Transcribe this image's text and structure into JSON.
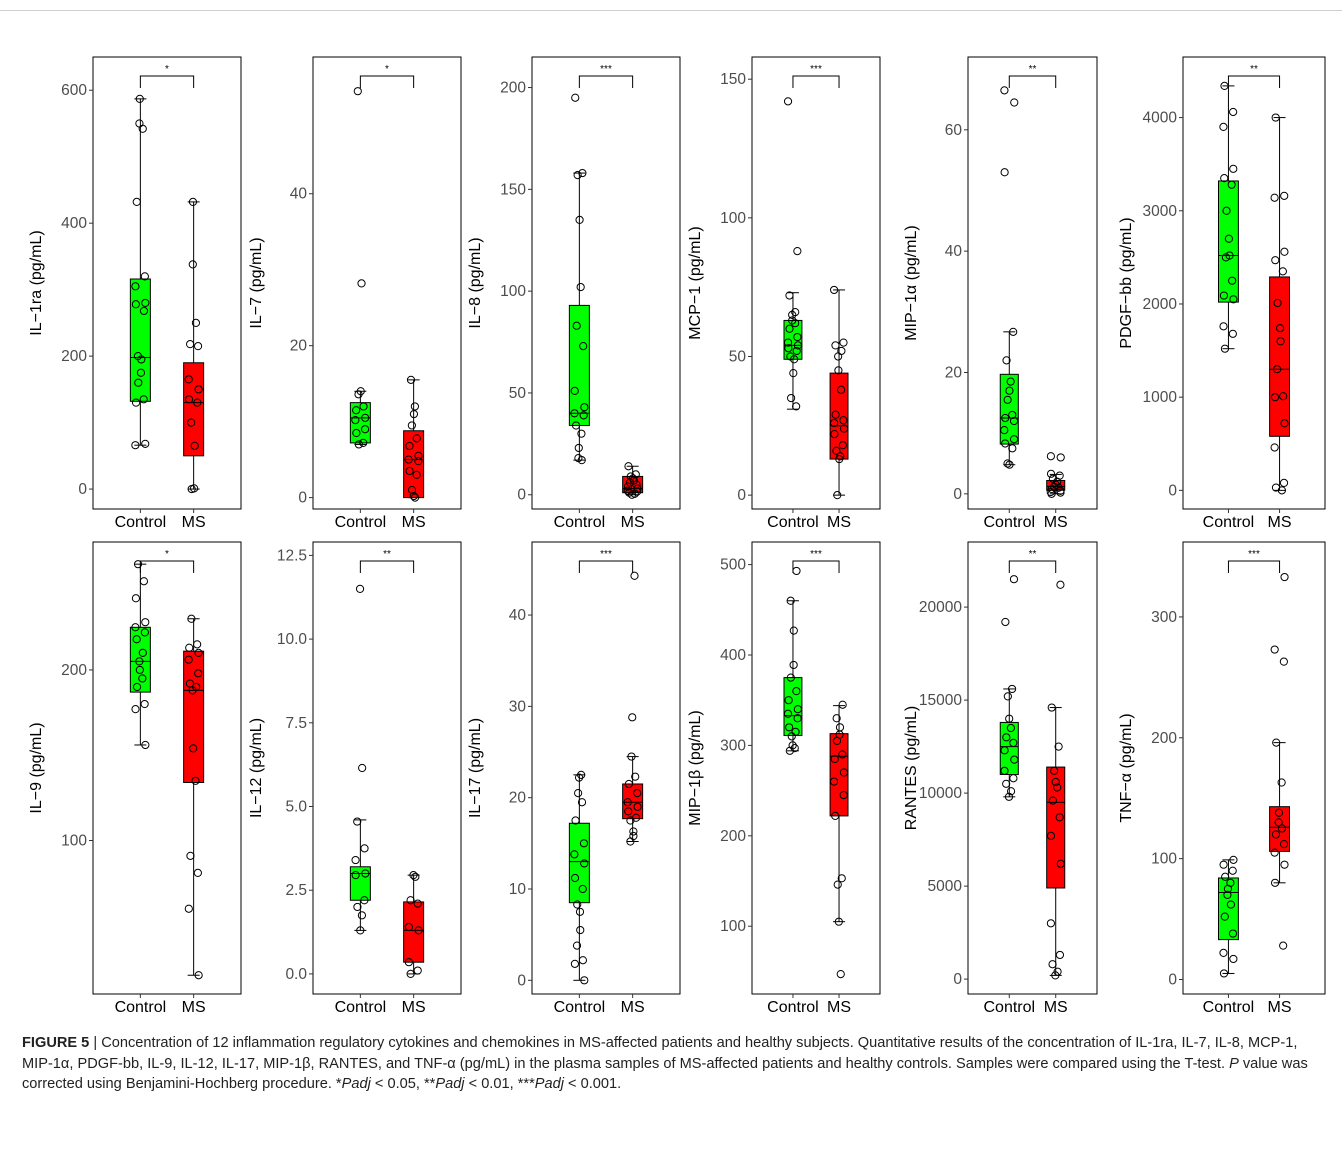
{
  "figure": {
    "label": "FIGURE 5",
    "caption_parts": [
      {
        "text": " | Concentration of 12 inflammation regulatory cytokines and chemokines in MS-affected patients and healthy subjects. Quantitative results of the concentration of IL-1ra, IL-7, IL-8, MCP-1, MIP-1α, PDGF-bb, IL-9, IL-12, IL-17, MIP-1β, RANTES, and TNF-α (pg/mL) in the plasma samples of MS-affected patients and healthy controls. Samples were compared using the T-test. ",
        "italic": false
      },
      {
        "text": "P",
        "italic": true
      },
      {
        "text": " value was corrected using Benjamini-Hochberg procedure. *",
        "italic": false
      },
      {
        "text": "Padj",
        "italic": true
      },
      {
        "text": " < 0.05, **",
        "italic": false
      },
      {
        "text": "Padj",
        "italic": true
      },
      {
        "text": " < 0.01, ***",
        "italic": false
      },
      {
        "text": "Padj",
        "italic": true
      },
      {
        "text": " < 0.001.",
        "italic": false
      }
    ]
  },
  "colors": {
    "control": "#00ff00",
    "ms": "#ff0000"
  },
  "chart_data": [
    {
      "type": "box",
      "ylabel": "IL−1ra (pg/mL)",
      "categories": [
        "Control",
        "MS"
      ],
      "significance": "*",
      "ylim": [
        -30,
        650
      ],
      "yticks": [
        0,
        200,
        400,
        600
      ],
      "boxes": [
        {
          "group": "Control",
          "min": 66,
          "q1": 132,
          "median": 198,
          "q3": 316,
          "max": 587
        },
        {
          "group": "MS",
          "min": 0,
          "q1": 50,
          "median": 130,
          "q3": 190,
          "max": 432
        }
      ],
      "points": [
        [
          587,
          550,
          542,
          432,
          320,
          305,
          280,
          278,
          268,
          200,
          195,
          175,
          160,
          135,
          130,
          68,
          66
        ],
        [
          432,
          338,
          250,
          218,
          215,
          165,
          150,
          135,
          130,
          100,
          65,
          1,
          0
        ]
      ]
    },
    {
      "type": "box",
      "ylabel": "IL−7 (pg/mL)",
      "categories": [
        "Control",
        "MS"
      ],
      "significance": "*",
      "ylim": [
        -1.5,
        58
      ],
      "yticks": [
        0,
        20,
        40
      ],
      "boxes": [
        {
          "group": "Control",
          "min": 7,
          "q1": 7.2,
          "median": 10.5,
          "q3": 12.5,
          "max": 14
        },
        {
          "group": "MS",
          "min": 0,
          "q1": 0,
          "median": 5,
          "q3": 8.8,
          "max": 15.5
        }
      ],
      "points": [
        [
          53.5,
          28.2,
          14,
          13.6,
          12,
          11.5,
          10.5,
          10.2,
          9,
          8.5,
          7.2,
          7
        ],
        [
          15.5,
          12,
          11,
          9.5,
          7.8,
          6.8,
          5.5,
          5,
          4.8,
          3.5,
          3,
          1,
          0.2,
          0
        ]
      ]
    },
    {
      "type": "box",
      "ylabel": "IL−8 (pg/mL)",
      "categories": [
        "Control",
        "MS"
      ],
      "significance": "***",
      "ylim": [
        -7,
        215
      ],
      "yticks": [
        0,
        50,
        100,
        150,
        200
      ],
      "boxes": [
        {
          "group": "Control",
          "min": 17,
          "q1": 34,
          "median": 40,
          "q3": 93,
          "max": 158
        },
        {
          "group": "MS",
          "min": 0,
          "q1": 1,
          "median": 3,
          "q3": 9,
          "max": 14
        }
      ],
      "points": [
        [
          195,
          158,
          157,
          135,
          102,
          83,
          73,
          51,
          43,
          40,
          39,
          34,
          30,
          23,
          18,
          17
        ],
        [
          14,
          10,
          9,
          8,
          7,
          6,
          5,
          4,
          3,
          2,
          1.5,
          1,
          0.5,
          0
        ]
      ]
    },
    {
      "type": "box",
      "ylabel": "MCP−1 (pg/mL)",
      "categories": [
        "Control",
        "MS"
      ],
      "significance": "***",
      "ylim": [
        -5,
        158
      ],
      "yticks": [
        0,
        50,
        100,
        150
      ],
      "boxes": [
        {
          "group": "Control",
          "min": 31,
          "q1": 49,
          "median": 54,
          "q3": 63,
          "max": 73
        },
        {
          "group": "MS",
          "min": 0,
          "q1": 13,
          "median": 25,
          "q3": 44,
          "max": 74
        }
      ],
      "points": [
        [
          142,
          88,
          72,
          66,
          65,
          63,
          62,
          60,
          57,
          55,
          54,
          53,
          52,
          50,
          49,
          44,
          35,
          32
        ],
        [
          74,
          55,
          54,
          52,
          50,
          45,
          38,
          29,
          27,
          26,
          24,
          22,
          18,
          16,
          14,
          13,
          0
        ]
      ]
    },
    {
      "type": "box",
      "ylabel": "MIP−1α (pg/mL)",
      "categories": [
        "Control",
        "MS"
      ],
      "significance": "**",
      "ylim": [
        -2.5,
        72
      ],
      "yticks": [
        0,
        20,
        40,
        60
      ],
      "boxes": [
        {
          "group": "Control",
          "min": 4.8,
          "q1": 8.2,
          "median": 12.5,
          "q3": 19.7,
          "max": 26.7
        },
        {
          "group": "MS",
          "min": 0,
          "q1": 0.6,
          "median": 1.2,
          "q3": 2.2,
          "max": 3.2
        }
      ],
      "points": [
        [
          66.5,
          64.5,
          53,
          26.7,
          22,
          18.5,
          17,
          15.5,
          13,
          12.5,
          12,
          10.5,
          9,
          8.3,
          7.5,
          5,
          4.8
        ],
        [
          6.2,
          6,
          3.3,
          3,
          2.5,
          2,
          1.5,
          1.2,
          1,
          0.8,
          0.5,
          0.3,
          0.2,
          0
        ]
      ]
    },
    {
      "type": "box",
      "ylabel": "PDGF−bb (pg/mL)",
      "categories": [
        "Control",
        "MS"
      ],
      "significance": "**",
      "ylim": [
        -200,
        4650
      ],
      "yticks": [
        0,
        1000,
        2000,
        3000,
        4000
      ],
      "boxes": [
        {
          "group": "Control",
          "min": 1520,
          "q1": 2020,
          "median": 2520,
          "q3": 3320,
          "max": 4340
        },
        {
          "group": "MS",
          "min": 0,
          "q1": 580,
          "median": 1300,
          "q3": 2290,
          "max": 4000
        }
      ],
      "points": [
        [
          4340,
          4060,
          3900,
          3450,
          3350,
          3280,
          3000,
          2700,
          2520,
          2500,
          2250,
          2090,
          2050,
          1760,
          1680,
          1520
        ],
        [
          4000,
          3160,
          3140,
          2560,
          2470,
          2350,
          2010,
          1740,
          1600,
          1300,
          1010,
          1000,
          720,
          460,
          80,
          30,
          0
        ]
      ]
    },
    {
      "type": "box",
      "ylabel": "IL−9 (pg/mL)",
      "categories": [
        "Control",
        "MS"
      ],
      "significance": "*",
      "ylim": [
        10,
        275
      ],
      "yticks": [
        100,
        200
      ],
      "boxes": [
        {
          "group": "Control",
          "min": 156,
          "q1": 187,
          "median": 205,
          "q3": 225,
          "max": 262
        },
        {
          "group": "MS",
          "min": 21,
          "q1": 134,
          "median": 188,
          "q3": 211,
          "max": 230
        }
      ],
      "points": [
        [
          262,
          252,
          242,
          228,
          225,
          222,
          218,
          210,
          205,
          200,
          195,
          190,
          180,
          177,
          156
        ],
        [
          230,
          215,
          213,
          210,
          206,
          198,
          192,
          190,
          188,
          154,
          135,
          91,
          81,
          60,
          21
        ]
      ]
    },
    {
      "type": "box",
      "ylabel": "IL−12 (pg/mL)",
      "categories": [
        "Control",
        "MS"
      ],
      "significance": "**",
      "ylim": [
        -0.6,
        12.9
      ],
      "yticks": [
        0.0,
        2.5,
        5.0,
        7.5,
        10.0,
        12.5
      ],
      "tick_decimals": 1,
      "boxes": [
        {
          "group": "Control",
          "min": 1.3,
          "q1": 2.2,
          "median": 3.0,
          "q3": 3.2,
          "max": 4.6
        },
        {
          "group": "MS",
          "min": 0,
          "q1": 0.35,
          "median": 1.3,
          "q3": 2.15,
          "max": 2.95
        }
      ],
      "points": [
        [
          11.5,
          6.15,
          4.55,
          3.75,
          3.4,
          3.0,
          2.95,
          2.2,
          2.0,
          1.75,
          1.3
        ],
        [
          2.95,
          2.9,
          2.2,
          2.1,
          1.4,
          1.3,
          0.35,
          0.1,
          0.0
        ]
      ]
    },
    {
      "type": "box",
      "ylabel": "IL−17 (pg/mL)",
      "categories": [
        "Control",
        "MS"
      ],
      "significance": "***",
      "ylim": [
        -1.5,
        48
      ],
      "yticks": [
        0,
        10,
        20,
        30,
        40
      ],
      "boxes": [
        {
          "group": "Control",
          "min": 0,
          "q1": 8.5,
          "median": 13,
          "q3": 17.2,
          "max": 22.5
        },
        {
          "group": "MS",
          "min": 15.2,
          "q1": 17.7,
          "median": 19.5,
          "q3": 21.5,
          "max": 24.5
        }
      ],
      "points": [
        [
          22.5,
          22.2,
          20.5,
          19.5,
          17.5,
          15,
          13.8,
          12.8,
          11.2,
          10,
          8.3,
          7.5,
          5.5,
          3.8,
          2.2,
          1.8,
          0
        ],
        [
          44.3,
          28.8,
          24.5,
          22.3,
          21.5,
          20.5,
          19.5,
          19,
          18.5,
          17.8,
          17.5,
          16.3,
          15.8,
          15.2
        ]
      ]
    },
    {
      "type": "box",
      "ylabel": "MIP−1β (pg/mL)",
      "categories": [
        "Control",
        "MS"
      ],
      "significance": "***",
      "ylim": [
        25,
        525
      ],
      "yticks": [
        100,
        200,
        300,
        400,
        500
      ],
      "boxes": [
        {
          "group": "Control",
          "min": 294,
          "q1": 311,
          "median": 333,
          "q3": 375,
          "max": 460
        },
        {
          "group": "MS",
          "min": 105,
          "q1": 222,
          "median": 288,
          "q3": 313,
          "max": 344
        }
      ],
      "points": [
        [
          493,
          460,
          427,
          389,
          375,
          360,
          350,
          340,
          335,
          330,
          320,
          315,
          310,
          300,
          297,
          294
        ],
        [
          345,
          330,
          320,
          312,
          305,
          290,
          285,
          270,
          260,
          245,
          222,
          153,
          146,
          105,
          47
        ]
      ]
    },
    {
      "type": "box",
      "ylabel": "RANTES (pg/mL)",
      "categories": [
        "Control",
        "MS"
      ],
      "significance": "**",
      "ylim": [
        -800,
        23500
      ],
      "yticks": [
        0,
        5000,
        10000,
        15000,
        20000
      ],
      "boxes": [
        {
          "group": "Control",
          "min": 9800,
          "q1": 11000,
          "median": 12500,
          "q3": 13800,
          "max": 15600
        },
        {
          "group": "MS",
          "min": 200,
          "q1": 4900,
          "median": 9500,
          "q3": 11400,
          "max": 14600
        }
      ],
      "points": [
        [
          21500,
          19200,
          15600,
          15200,
          14000,
          13500,
          13000,
          12700,
          12300,
          11800,
          11200,
          10800,
          10500,
          10100,
          9800
        ],
        [
          21200,
          14600,
          12500,
          11200,
          10600,
          10300,
          9600,
          8700,
          7700,
          6200,
          3000,
          1300,
          800,
          400,
          200
        ]
      ]
    },
    {
      "type": "box",
      "ylabel": "TNF−α (pg/mL)",
      "categories": [
        "Control",
        "MS"
      ],
      "significance": "***",
      "ylim": [
        -12,
        362
      ],
      "yticks": [
        0,
        100,
        200,
        300
      ],
      "boxes": [
        {
          "group": "Control",
          "min": 5,
          "q1": 33,
          "median": 72,
          "q3": 84,
          "max": 99
        },
        {
          "group": "MS",
          "min": 80,
          "q1": 106,
          "median": 126,
          "q3": 143,
          "max": 196
        }
      ],
      "points": [
        [
          99,
          95,
          90,
          85,
          80,
          75,
          70,
          62,
          52,
          38,
          22,
          17,
          5
        ],
        [
          333,
          273,
          263,
          196,
          163,
          138,
          130,
          125,
          120,
          112,
          105,
          95,
          80,
          28
        ]
      ]
    }
  ]
}
